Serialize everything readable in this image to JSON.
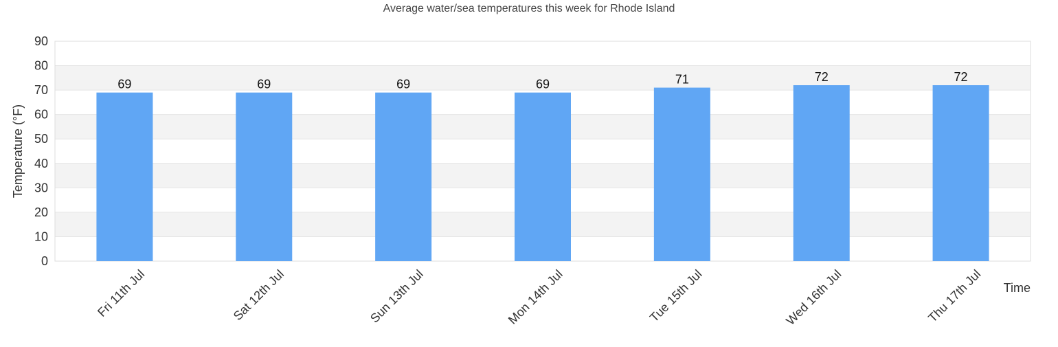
{
  "chart_data": {
    "type": "bar",
    "title": "Average water/sea temperatures this week for Rhode Island",
    "xlabel": "Time",
    "ylabel": "Temperature (°F)",
    "categories": [
      "Fri 11th Jul",
      "Sat 12th Jul",
      "Sun 13th Jul",
      "Mon 14th Jul",
      "Tue 15th Jul",
      "Wed 16th Jul",
      "Thu 17th Jul"
    ],
    "values": [
      69,
      69,
      69,
      69,
      71,
      72,
      72
    ],
    "data_labels": [
      "69",
      "69",
      "69",
      "69",
      "71",
      "72",
      "72"
    ],
    "ylim": [
      0,
      90
    ],
    "yticks": [
      0,
      10,
      20,
      30,
      40,
      50,
      60,
      70,
      80,
      90
    ],
    "ytick_labels": [
      "0",
      "10",
      "20",
      "30",
      "40",
      "50",
      "60",
      "70",
      "80",
      "90"
    ],
    "grid": true,
    "alternating_bands": true,
    "bar_color": "#60a6f4",
    "band_color": "#f3f3f3",
    "grid_color": "#e4e4e4",
    "text_color": "#333333"
  }
}
